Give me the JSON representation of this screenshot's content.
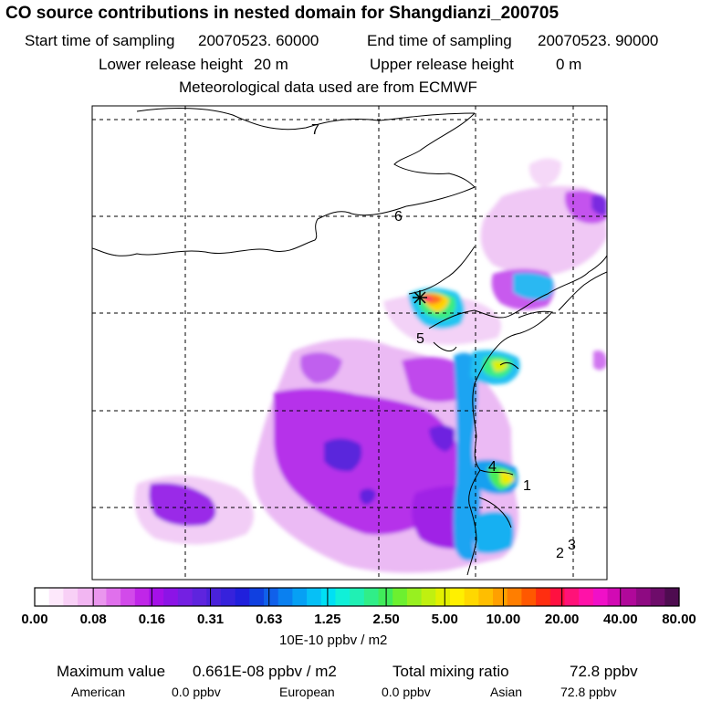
{
  "header": {
    "title": "CO  source contributions in nested domain for Shangdianzi_200705",
    "start_label": "Start time of sampling",
    "start_value": "20070523. 60000",
    "end_label": "End time of sampling",
    "end_value": "20070523. 90000",
    "lower_label": "Lower release height",
    "lower_value": "20 m",
    "upper_label": "Upper release height",
    "upper_value": "0 m",
    "met": "Meteorological data used are from ECMWF"
  },
  "map": {
    "grid_labels": [
      "7",
      "6",
      "5",
      "4",
      "1",
      "2",
      "3"
    ],
    "receptor_marker": "star-icon"
  },
  "chart_data": {
    "type": "heatmap",
    "title": "CO  source contributions in nested domain for Shangdianzi_200705",
    "colorbar": {
      "ticks": [
        "0.00",
        "0.08",
        "0.16",
        "0.31",
        "0.63",
        "1.25",
        "2.50",
        "5.00",
        "10.00",
        "20.00",
        "40.00",
        "80.00"
      ],
      "unit": "10E-10 ppbv / m2",
      "colors": [
        "#ffffff",
        "#fde8fb",
        "#f8d0f6",
        "#f2b6f2",
        "#ea96ee",
        "#e070ec",
        "#d24aea",
        "#c026e8",
        "#a510e8",
        "#8c14e6",
        "#7420e2",
        "#5e24de",
        "#4a22da",
        "#3622dc",
        "#2020dc",
        "#1040e0",
        "#1060ea",
        "#0a80f0",
        "#06a0f4",
        "#06c0f6",
        "#00e0f4",
        "#10f0d8",
        "#20f0b4",
        "#30ee88",
        "#40ec5a",
        "#6cf030",
        "#98f020",
        "#c0f010",
        "#e2f000",
        "#fff000",
        "#ffd800",
        "#ffbe00",
        "#ffa000",
        "#ff7e00",
        "#ff5800",
        "#ff2e10",
        "#ff1040",
        "#ff1278",
        "#ff12a8",
        "#f010c8",
        "#d20ab4",
        "#b0089a",
        "#8e0a82",
        "#6e0c6a",
        "#4e0c50"
      ]
    }
  },
  "footer": {
    "max_label": "Maximum value",
    "max_value": "0.661E-08 ppbv / m2",
    "total_label": "Total mixing ratio",
    "total_value": "72.8 ppbv",
    "american_label": "American",
    "american_value": "0.0 ppbv",
    "european_label": "European",
    "european_value": "0.0 ppbv",
    "asian_label": "Asian",
    "asian_value": "72.8 ppbv"
  }
}
